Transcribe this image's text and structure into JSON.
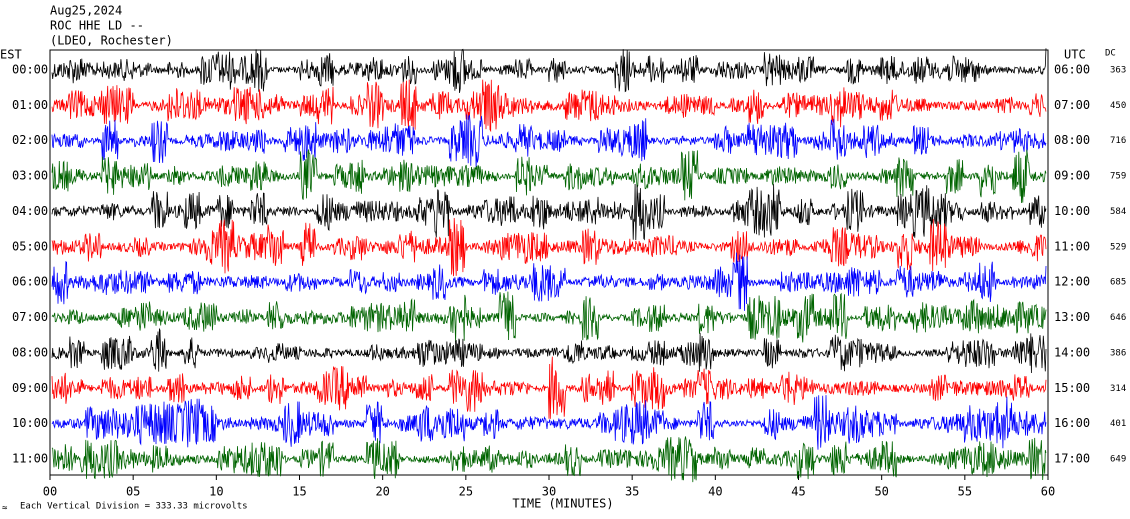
{
  "chart_data": {
    "type": "helicorder",
    "title_lines": [
      "Aug25,2024",
      "ROC HHE LD --",
      "(LDEO, Rochester)"
    ],
    "left_axis_label": "EST",
    "right_axis_label": "UTC",
    "dc_label": "DC",
    "xlabel": "TIME (MINUTES)",
    "footnote": "Each Vertical Division =  333.33 microvolts",
    "xlim": [
      0,
      60
    ],
    "xticks": [
      {
        "value": 0,
        "label": "00"
      },
      {
        "value": 5,
        "label": "05"
      },
      10,
      15,
      20,
      25,
      30,
      35,
      40,
      45,
      50,
      55,
      60
    ],
    "rows": [
      {
        "est": "00:00",
        "utc": "06:00",
        "dc": 363,
        "color": "#000000"
      },
      {
        "est": "01:00",
        "utc": "07:00",
        "dc": 450,
        "color": "#ff0000"
      },
      {
        "est": "02:00",
        "utc": "08:00",
        "dc": 716,
        "color": "#0000ff"
      },
      {
        "est": "03:00",
        "utc": "09:00",
        "dc": 759,
        "color": "#006400"
      },
      {
        "est": "04:00",
        "utc": "10:00",
        "dc": 584,
        "color": "#000000"
      },
      {
        "est": "05:00",
        "utc": "11:00",
        "dc": 529,
        "color": "#ff0000"
      },
      {
        "est": "06:00",
        "utc": "12:00",
        "dc": 685,
        "color": "#0000ff"
      },
      {
        "est": "07:00",
        "utc": "13:00",
        "dc": 646,
        "color": "#006400"
      },
      {
        "est": "08:00",
        "utc": "14:00",
        "dc": 386,
        "color": "#000000"
      },
      {
        "est": "09:00",
        "utc": "15:00",
        "dc": 314,
        "color": "#ff0000"
      },
      {
        "est": "10:00",
        "utc": "16:00",
        "dc": 401,
        "color": "#0000ff"
      },
      {
        "est": "11:00",
        "utc": "17:00",
        "dc": 649,
        "color": "#006400"
      }
    ]
  }
}
